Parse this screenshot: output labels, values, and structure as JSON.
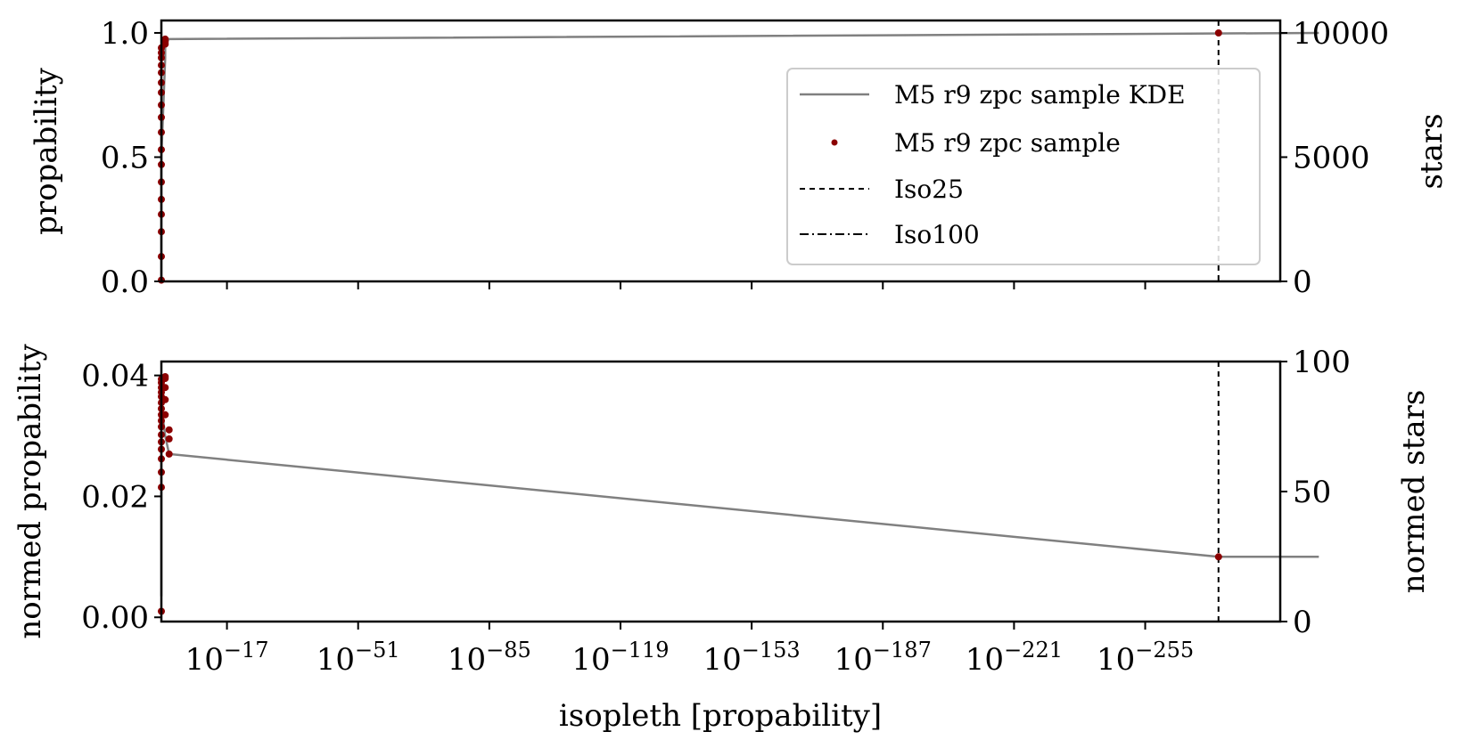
{
  "chart_data": [
    {
      "type": "line",
      "panel": "top",
      "xlabel": "",
      "ylabel": "propability",
      "ylabel_right": "stars",
      "x_scale": "log",
      "x_reversed": true,
      "xlim": [
        "1e0",
        "1e-290"
      ],
      "ylim": [
        0,
        1.05
      ],
      "ylim_right": [
        0,
        10500
      ],
      "yticks": [
        0.0,
        0.5,
        1.0
      ],
      "ytick_labels": [
        "0.0",
        "0.5",
        "1.0"
      ],
      "yticks_right": [
        0,
        5000,
        10000
      ],
      "ytick_labels_right": [
        "0",
        "5000",
        "10000"
      ],
      "series": [
        {
          "name": "M5 r9 zpc sample KDE",
          "kind": "line",
          "color": "#808080",
          "points": [
            [
              "1e-0.5",
              0.005
            ],
            [
              "1e-0.5",
              0.5
            ],
            [
              "1e-1",
              0.9
            ],
            [
              "1e-1.5",
              0.96
            ],
            [
              "1e-2",
              0.975
            ],
            [
              "1e-300",
              1.0
            ]
          ]
        },
        {
          "name": "M5 r9 zpc sample",
          "kind": "scatter",
          "color": "#8b0000",
          "points": [
            [
              "1e-0.1",
              0.005
            ],
            [
              "1e-0.2",
              0.1
            ],
            [
              "1e-0.25",
              0.2
            ],
            [
              "1e-0.3",
              0.27
            ],
            [
              "1e-0.3",
              0.33
            ],
            [
              "1e-0.35",
              0.4
            ],
            [
              "1e-0.4",
              0.47
            ],
            [
              "1e-0.4",
              0.53
            ],
            [
              "1e-0.45",
              0.6
            ],
            [
              "1e-0.5",
              0.66
            ],
            [
              "1e-0.5",
              0.71
            ],
            [
              "1e-0.6",
              0.76
            ],
            [
              "1e-0.6",
              0.8
            ],
            [
              "1e-0.65",
              0.84
            ],
            [
              "1e-0.7",
              0.87
            ],
            [
              "1e-0.75",
              0.9
            ],
            [
              "1e-0.8",
              0.92
            ],
            [
              "1e-0.9",
              0.94
            ],
            [
              "1e-1.0",
              0.955
            ],
            [
              "1e-1.2",
              0.965
            ],
            [
              "1e-1.5",
              0.975
            ],
            [
              "1e-274",
              1.0
            ]
          ]
        },
        {
          "name": "Iso25",
          "kind": "vline",
          "style": "dashed",
          "x": "1e-274"
        },
        {
          "name": "Iso100",
          "kind": "vline",
          "style": "dashdot",
          "x": "1e-0.1"
        }
      ],
      "legend_position": "upper right"
    },
    {
      "type": "line",
      "panel": "bottom",
      "xlabel": "isopleth [propability]",
      "ylabel": "normed propability",
      "ylabel_right": "normed stars",
      "x_scale": "log",
      "x_reversed": true,
      "xlim": [
        "1e0",
        "1e-290"
      ],
      "xticks": [
        "1e-17",
        "1e-51",
        "1e-85",
        "1e-119",
        "1e-153",
        "1e-187",
        "1e-221",
        "1e-255"
      ],
      "xtick_exponents": [
        "−17",
        "−51",
        "−85",
        "−119",
        "−153",
        "−187",
        "−221",
        "−255"
      ],
      "ylim": [
        -0.0007,
        0.0423
      ],
      "ylim_right": [
        0,
        100
      ],
      "yticks": [
        0.0,
        0.02,
        0.04
      ],
      "ytick_labels": [
        "0.00",
        "0.02",
        "0.04"
      ],
      "yticks_right": [
        0,
        50,
        100
      ],
      "ytick_labels_right": [
        "0",
        "50",
        "100"
      ],
      "series": [
        {
          "name": "M5 r9 zpc sample KDE",
          "kind": "line",
          "color": "#808080",
          "points": [
            [
              "1e-0.2",
              0.0035
            ],
            [
              "1e-0.2",
              0.021
            ],
            [
              "1e-0.5",
              0.035
            ],
            [
              "1e-1.0",
              0.03
            ],
            [
              "1e-2",
              0.027
            ],
            [
              "1e-274",
              0.01
            ],
            [
              "1e-300",
              0.01
            ]
          ]
        },
        {
          "name": "M5 r9 zpc sample",
          "kind": "scatter",
          "color": "#8b0000",
          "points": [
            [
              "1e-0.1",
              0.001
            ],
            [
              "1e-0.1",
              0.0215
            ],
            [
              "1e-0.15",
              0.024
            ],
            [
              "1e-0.2",
              0.0262
            ],
            [
              "1e-0.2",
              0.0278
            ],
            [
              "1e-0.25",
              0.029
            ],
            [
              "1e-0.3",
              0.0302
            ],
            [
              "1e-0.3",
              0.0315
            ],
            [
              "1e-0.35",
              0.0325
            ],
            [
              "1e-0.4",
              0.0335
            ],
            [
              "1e-0.45",
              0.0345
            ],
            [
              "1e-0.5",
              0.0355
            ],
            [
              "1e-0.55",
              0.0365
            ],
            [
              "1e-0.6",
              0.0372
            ],
            [
              "1e-0.7",
              0.038
            ],
            [
              "1e-0.8",
              0.0388
            ],
            [
              "1e-0.9",
              0.0394
            ],
            [
              "1e-1.0",
              0.0398
            ],
            [
              "1e-1.2",
              0.0395
            ],
            [
              "1e-1.4",
              0.038
            ],
            [
              "1e-1.6",
              0.036
            ],
            [
              "1e-1.8",
              0.0335
            ],
            [
              "1e-2.0",
              0.031
            ],
            [
              "1e-2.2",
              0.0295
            ],
            [
              "1e-2.4",
              0.027
            ],
            [
              "1e-274",
              0.01
            ]
          ]
        },
        {
          "name": "Iso25",
          "kind": "vline",
          "style": "dashed",
          "x": "1e-274"
        },
        {
          "name": "Iso100",
          "kind": "vline",
          "style": "dashdot",
          "x": "1e-0.1"
        }
      ]
    }
  ],
  "legend": {
    "entries": [
      {
        "label": "M5 r9 zpc sample KDE",
        "style": "line"
      },
      {
        "label": "M5 r9 zpc sample",
        "style": "dot"
      },
      {
        "label": "Iso25",
        "style": "dashed"
      },
      {
        "label": "Iso100",
        "style": "dashdot"
      }
    ]
  },
  "colors": {
    "kde": "#808080",
    "sample": "#8b0000",
    "axes": "#000000"
  }
}
